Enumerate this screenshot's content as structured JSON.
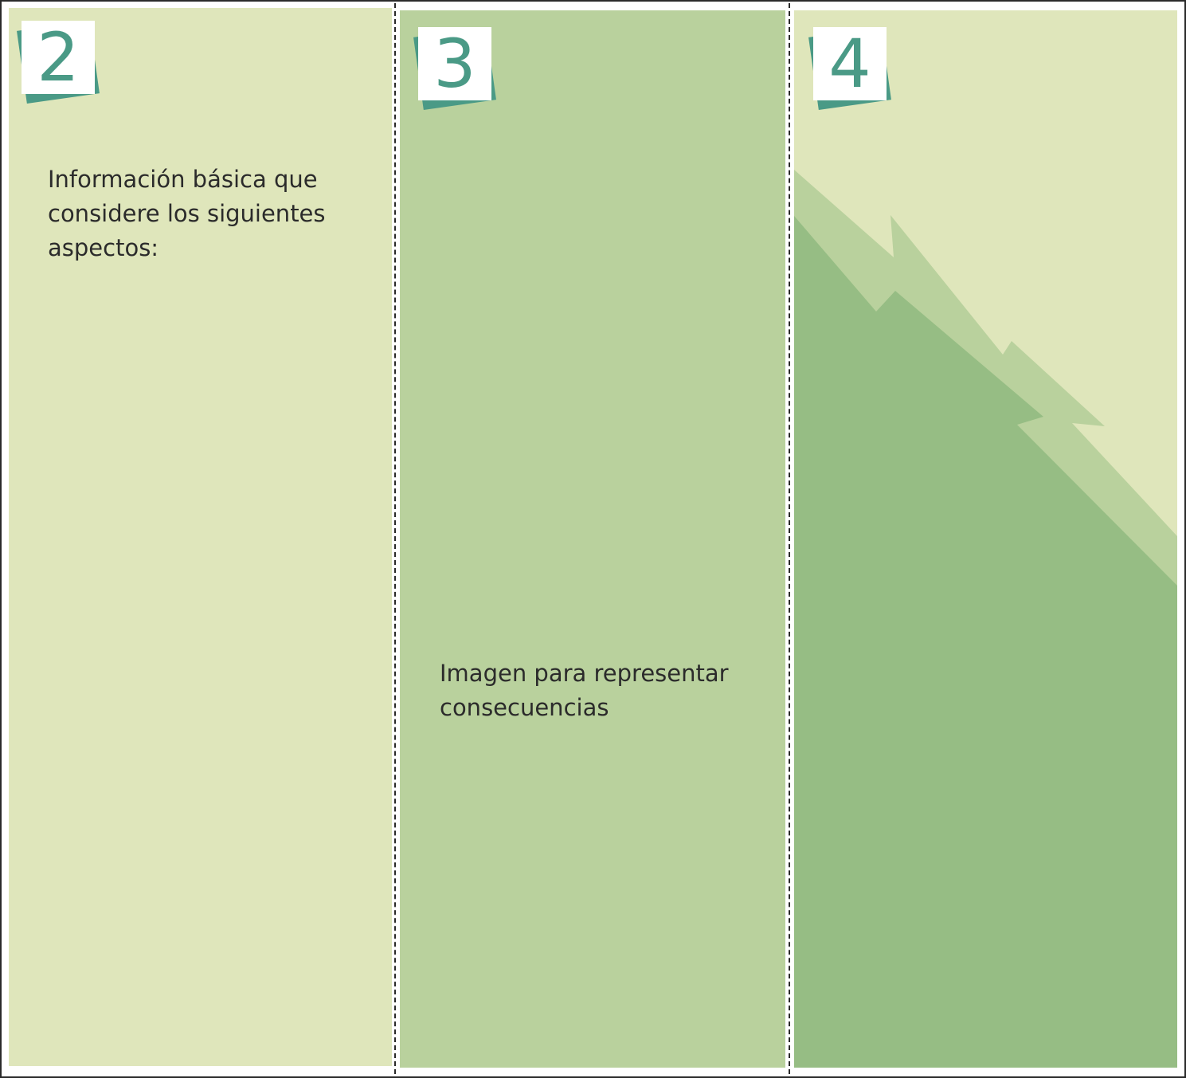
{
  "panels": [
    {
      "number": "2",
      "text": "Información básica que\nconsidere los siguientes\naspectos:"
    },
    {
      "number": "3",
      "text": "Imagen para representar\nconsecuencias"
    },
    {
      "number": "4",
      "decoration": "mountain-slope"
    }
  ],
  "colors": {
    "pale_green": "#dfe6bb",
    "mid_green": "#b9d19d",
    "dark_green": "#96bd84",
    "badge_teal": "#4a9a86",
    "fold_line": "#2a2a2a"
  }
}
